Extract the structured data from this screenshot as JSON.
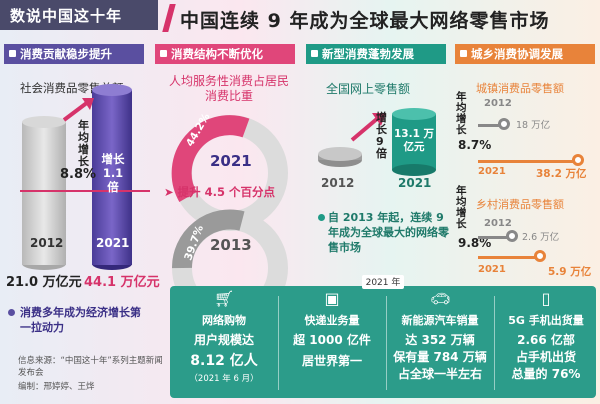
{
  "header": {
    "brand": "数说中国这十年",
    "title": "中国连续 9 年成为全球最大网络零售市场"
  },
  "sections": {
    "s1": "消费贡献稳步提升",
    "s2": "消费结构不断优化",
    "s3": "新型消费蓬勃发展",
    "s4": "城乡消费协调发展"
  },
  "col1": {
    "title": "社会消费品零售总额",
    "growth_label": "年均增长",
    "growth_value": "8.8%",
    "multiple_label": "增长 1.1 倍",
    "year_2012": "2012",
    "year_2021": "2021",
    "value_2012": "21.0 万亿元",
    "value_2021": "44.1 万亿元",
    "note": "消费多年成为经济增长第一拉动力",
    "source": "信息来源：“中国这十年”系列主题新闻发布会",
    "editor": "编制：邢婷婷、王烨"
  },
  "col2": {
    "title": "人均服务性消费占居民消费比重",
    "pct_2021": "44.2%",
    "year_2021": "2021",
    "pct_2013": "39.7%",
    "year_2013": "2013",
    "rise": "提升 4.5 个百分点"
  },
  "col3": {
    "title": "全国网上零售额",
    "rise": "增长 9 倍",
    "value_2021": "13.1 万亿元",
    "year_2012": "2012",
    "year_2021": "2021",
    "note": "自 2013 年起，连续 9 年成为全球最大的网络零售市场"
  },
  "col4": {
    "urban_title": "城镇消费品零售额",
    "urban_growth_label": "年均增长",
    "urban_growth": "8.7%",
    "urban_2012_year": "2012",
    "urban_2012_val": "18 万亿",
    "urban_2021_year": "2021",
    "urban_2021_val": "38.2 万亿",
    "rural_title": "乡村消费品零售额",
    "rural_growth_label": "年均增长",
    "rural_growth": "9.8%",
    "rural_2012_year": "2012",
    "rural_2012_val": "2.6 万亿",
    "rural_2021_year": "2021",
    "rural_2021_val": "5.9 万亿"
  },
  "panel": {
    "label": "2021 年",
    "items": [
      {
        "icon": "cart-icon",
        "cat": "网络购物",
        "v1": "用户规模达",
        "v2": "8.12 亿人",
        "sm": "（2021 年 6 月）"
      },
      {
        "icon": "box-icon",
        "cat": "快递业务量",
        "v1": "超 1000 亿件",
        "v2": "居世界第一",
        "sm": ""
      },
      {
        "icon": "car-icon",
        "cat": "新能源汽车销量",
        "v1": "达 352 万辆",
        "v2": "保有量 784 万辆",
        "v3": "占全球一半左右"
      },
      {
        "icon": "phone-icon",
        "cat": "5G 手机出货量",
        "v1": "2.66 亿部",
        "v2": "占手机出货",
        "v3": "总量的 76%"
      }
    ]
  },
  "colors": {
    "purple": "#5a4fa0",
    "pink": "#e0467a",
    "teal": "#1f9a86",
    "orange": "#e8833a"
  }
}
